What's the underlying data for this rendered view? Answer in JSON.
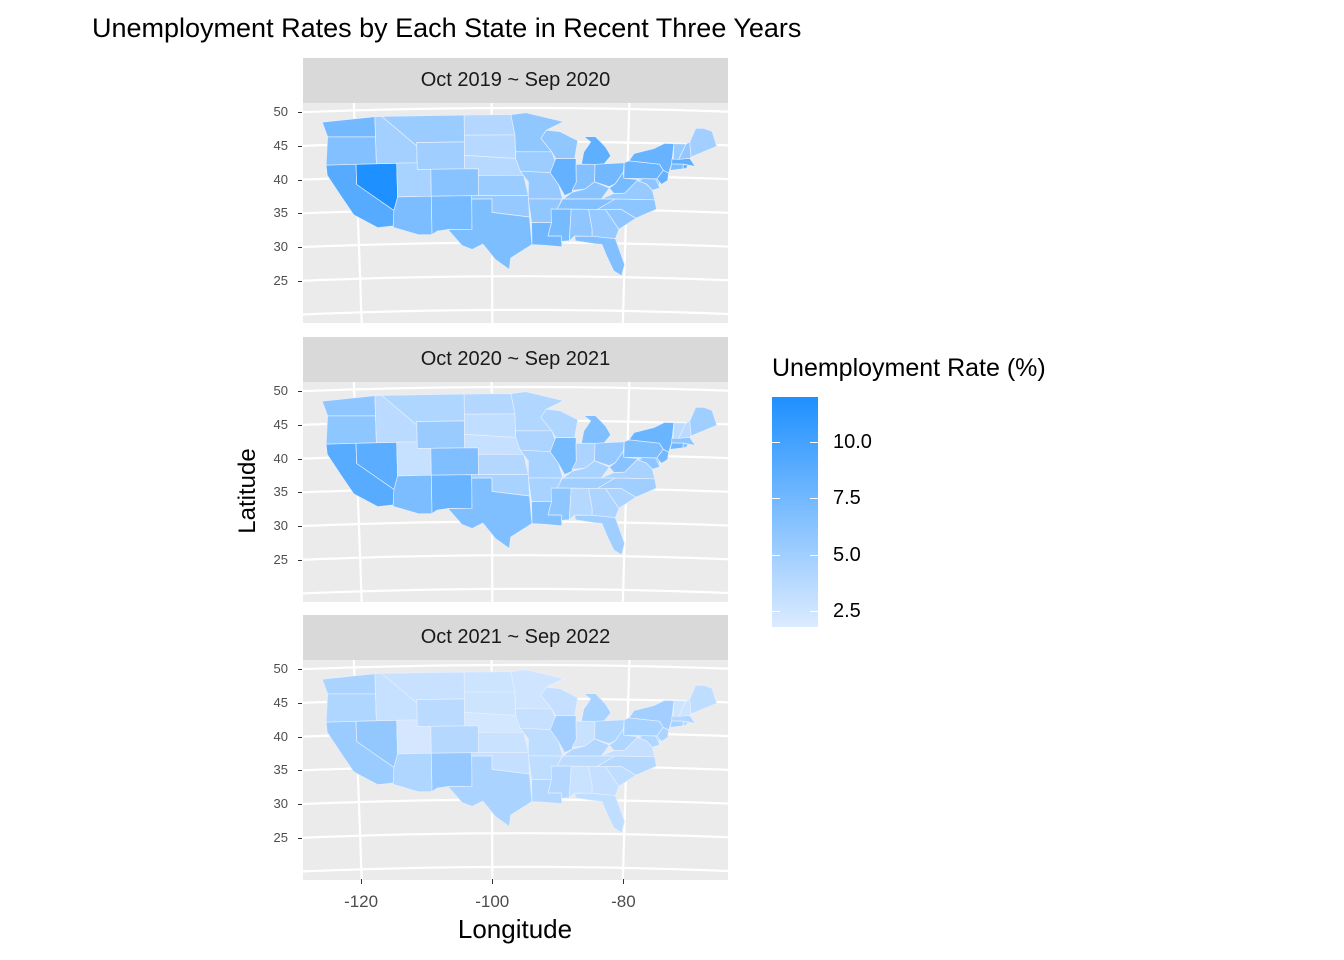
{
  "title": "Unemployment Rates by Each State in Recent Three Years",
  "chart_data": {
    "type": "choropleth",
    "xlabel": "Longitude",
    "ylabel": "Latitude",
    "x_ticks": [
      "-120",
      "-100",
      "-80"
    ],
    "y_ticks": [
      "50",
      "45",
      "40",
      "35",
      "30",
      "25"
    ],
    "facets": [
      {
        "label": "Oct 2019 ~ Sep 2020",
        "rates": {
          "CA": 9.0,
          "NV": 12.0,
          "WA": 7.4,
          "OR": 6.6,
          "ID": 4.8,
          "MT": 5.3,
          "WY": 5.1,
          "UT": 4.6,
          "AZ": 7.0,
          "NM": 7.3,
          "CO": 6.3,
          "ND": 4.0,
          "SD": 3.8,
          "NE": 3.8,
          "KS": 5.3,
          "OK": 5.6,
          "TX": 6.9,
          "MN": 5.8,
          "IA": 5.2,
          "MO": 5.6,
          "AR": 5.8,
          "LA": 7.6,
          "WI": 5.8,
          "IL": 8.3,
          "MI": 8.5,
          "IN": 6.6,
          "OH": 7.5,
          "KY": 6.3,
          "TN": 6.6,
          "MS": 7.2,
          "AL": 5.9,
          "GA": 5.6,
          "FL": 6.7,
          "SC": 5.9,
          "NC": 6.1,
          "VA": 5.5,
          "WV": 7.3,
          "PA": 8.0,
          "NY": 8.1,
          "NJ": 8.3,
          "CT": 7.1,
          "RI": 8.3,
          "MA": 8.5,
          "VT": 5.4,
          "NH": 5.8,
          "ME": 4.9,
          "MD": 6.1,
          "DE": 6.8
        }
      },
      {
        "label": "Oct 2020 ~ Sep 2021",
        "rates": {
          "CA": 8.9,
          "NV": 8.8,
          "WA": 5.9,
          "OR": 6.0,
          "ID": 3.6,
          "MT": 4.2,
          "WY": 5.4,
          "UT": 3.0,
          "AZ": 7.0,
          "NM": 8.0,
          "CO": 6.8,
          "ND": 4.0,
          "SD": 3.3,
          "NE": 3.0,
          "KS": 4.0,
          "OK": 4.6,
          "TX": 6.8,
          "MN": 4.1,
          "IA": 4.4,
          "MO": 4.6,
          "AR": 4.6,
          "LA": 6.6,
          "WI": 4.2,
          "IL": 7.2,
          "MI": 6.8,
          "IN": 4.4,
          "OH": 5.6,
          "KY": 4.6,
          "TN": 5.1,
          "MS": 6.0,
          "AL": 3.9,
          "GA": 4.4,
          "FL": 5.0,
          "SC": 4.4,
          "NC": 5.1,
          "VA": 4.6,
          "WV": 6.3,
          "PA": 6.9,
          "NY": 7.9,
          "NJ": 7.4,
          "CT": 7.6,
          "RI": 6.5,
          "MA": 6.1,
          "VT": 3.5,
          "NH": 3.6,
          "ME": 5.0,
          "MD": 6.1,
          "DE": 6.3
        }
      },
      {
        "label": "Oct 2021 ~ Sep 2022",
        "rates": {
          "CA": 5.3,
          "NV": 5.7,
          "WA": 4.5,
          "OR": 4.2,
          "ID": 3.0,
          "MT": 2.9,
          "WY": 3.6,
          "UT": 2.2,
          "AZ": 4.2,
          "NM": 5.6,
          "CO": 3.9,
          "ND": 2.6,
          "SD": 2.6,
          "NE": 2.3,
          "KS": 2.8,
          "OK": 3.1,
          "TX": 4.5,
          "MN": 2.5,
          "IA": 3.0,
          "MO": 3.4,
          "AR": 3.4,
          "LA": 4.0,
          "WI": 3.1,
          "IL": 4.9,
          "MI": 4.6,
          "IN": 2.9,
          "OH": 4.2,
          "KY": 4.0,
          "TN": 3.5,
          "MS": 4.0,
          "AL": 2.8,
          "GA": 3.1,
          "FL": 3.3,
          "SC": 3.4,
          "NC": 3.9,
          "VA": 3.1,
          "WV": 4.2,
          "PA": 4.6,
          "NY": 4.9,
          "NJ": 4.4,
          "CT": 4.6,
          "RI": 3.7,
          "MA": 4.0,
          "VT": 2.6,
          "NH": 2.6,
          "ME": 3.4,
          "MD": 4.2,
          "DE": 4.6
        }
      }
    ]
  },
  "legend": {
    "title": "Unemployment Rate (%)",
    "low_color": "#DCEBFF",
    "high_color": "#1E90FF",
    "min": 1.8,
    "max": 12.0,
    "ticks": [
      {
        "value": 10.0,
        "label": "10.0"
      },
      {
        "value": 7.5,
        "label": "7.5"
      },
      {
        "value": 5.0,
        "label": "5.0"
      },
      {
        "value": 2.5,
        "label": "2.5"
      }
    ]
  }
}
